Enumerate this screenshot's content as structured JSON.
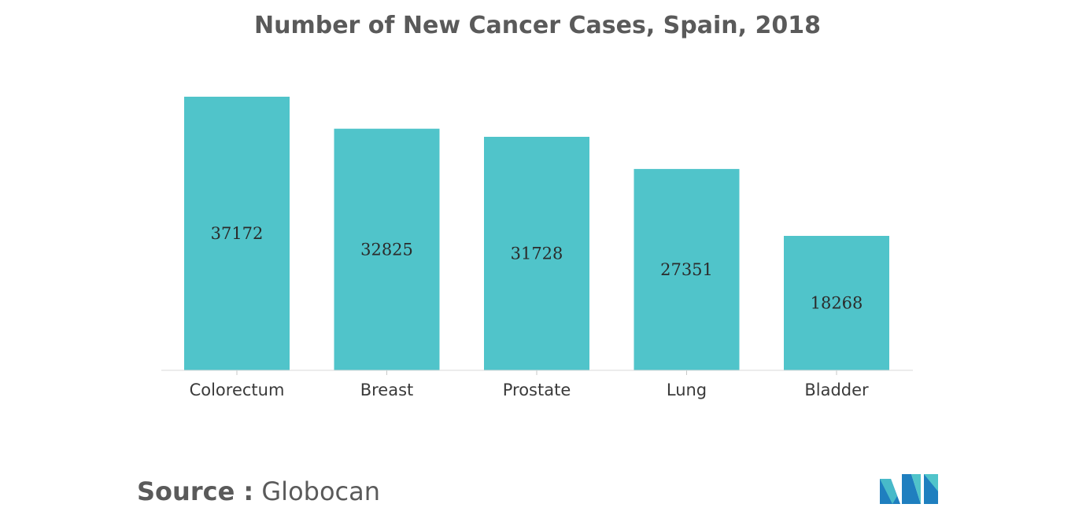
{
  "chart_data": {
    "type": "bar",
    "title": "Number of New Cancer Cases, Spain, 2018",
    "categories": [
      "Colorectum",
      "Breast",
      "Prostate",
      "Lung",
      "Bladder"
    ],
    "values": [
      37172,
      32825,
      31728,
      27351,
      18268
    ],
    "value_labels": [
      "37172",
      "32825",
      "31728",
      "27351",
      "18268"
    ],
    "xlabel": "",
    "ylabel": "",
    "ylim": [
      0,
      37172
    ],
    "grid": false,
    "legend": "none",
    "bar_color": "#50c4ca"
  },
  "source": {
    "prefix": "Source :",
    "name": "Globocan"
  },
  "logo": {
    "icon": "mordor-intelligence-logo-icon",
    "colors": [
      "#1f7fbf",
      "#50c4ca"
    ]
  }
}
